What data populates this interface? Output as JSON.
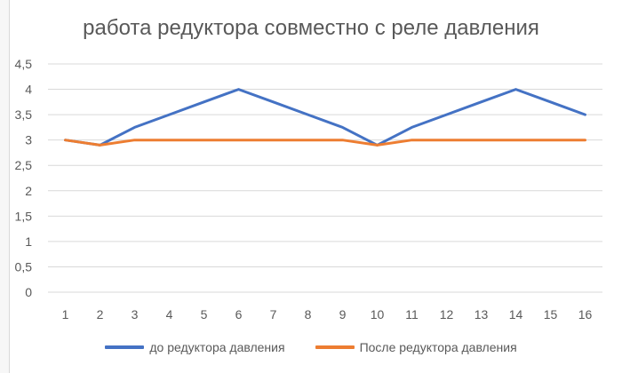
{
  "chart_data": {
    "type": "line",
    "title": "работа редуктора совместно с реле давления",
    "xlabel": "",
    "ylabel": "",
    "categories": [
      "1",
      "2",
      "3",
      "4",
      "5",
      "6",
      "7",
      "8",
      "9",
      "10",
      "11",
      "12",
      "13",
      "14",
      "15",
      "16"
    ],
    "ylim": [
      0,
      4.5
    ],
    "yticks": [
      "0",
      "0,5",
      "1",
      "1,5",
      "2",
      "2,5",
      "3",
      "3,5",
      "4",
      "4,5"
    ],
    "grid": true,
    "legend_position": "bottom",
    "series": [
      {
        "name": "до редуктора давления",
        "color": "#4472C4",
        "values": [
          3,
          2.9,
          3.25,
          3.5,
          3.75,
          4,
          3.75,
          3.5,
          3.25,
          2.9,
          3.25,
          3.5,
          3.75,
          4,
          3.75,
          3.5
        ]
      },
      {
        "name": "После редуктора давления",
        "color": "#ED7D31",
        "values": [
          3,
          2.9,
          3,
          3,
          3,
          3,
          3,
          3,
          3,
          2.9,
          3,
          3,
          3,
          3,
          3,
          3
        ]
      }
    ]
  }
}
